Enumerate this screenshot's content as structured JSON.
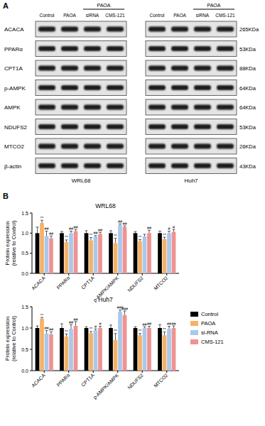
{
  "figure": {
    "panel_a": {
      "label": "A",
      "treatment_label": "PAOA",
      "lanes": [
        "Control",
        "PAOA",
        "siRNA",
        "CMS-121"
      ],
      "proteins": [
        "ACACA",
        "PPARα",
        "CPT1A",
        "p-AMPK",
        "AMPK",
        "NDUFS2",
        "MTCO2",
        "β-actin"
      ],
      "sizes": [
        "265KDa",
        "53KDa",
        "88KDa",
        "64KDa",
        "64KDa",
        "53KDa",
        "26KDa",
        "43KDa"
      ],
      "cell_lines": [
        "WRL68",
        "Huh7"
      ]
    },
    "panel_b_label": "B"
  },
  "chart_data": [
    {
      "type": "bar",
      "title": "WRL68",
      "y_label": [
        "Protein expression",
        "(relative to Control)"
      ],
      "categories": [
        "ACACA",
        "PPARα",
        "CPT1A",
        "p-AMPK/AMPK",
        "NDUFS2",
        "MTCO2"
      ],
      "series": [
        {
          "name": "Control",
          "color": "#000000",
          "values": [
            1.0,
            1.0,
            1.0,
            1.0,
            1.0,
            1.0
          ],
          "errors": [
            0.15,
            0.04,
            0.06,
            0.06,
            0.04,
            0.05
          ],
          "annotations": [
            null,
            null,
            null,
            null,
            null,
            null
          ]
        },
        {
          "name": "PAOA",
          "color": "#f5b266",
          "values": [
            1.25,
            0.78,
            0.82,
            0.75,
            0.8,
            0.85
          ],
          "errors": [
            0.07,
            0.05,
            0.07,
            0.12,
            0.04,
            0.05
          ],
          "annotations": [
            "**",
            "**",
            "**",
            "**",
            "**",
            "**"
          ]
        },
        {
          "name": "si-RNA",
          "color": "#a9c8ec",
          "values": [
            0.93,
            1.0,
            0.92,
            1.2,
            0.92,
            1.0
          ],
          "errors": [
            0.12,
            0.05,
            0.02,
            0.03,
            0.05,
            0.05
          ],
          "annotations": [
            "##",
            "##",
            "##",
            "##",
            null,
            "#"
          ]
        },
        {
          "name": "CMS-121",
          "color": "#f19191",
          "values": [
            0.87,
            1.05,
            0.98,
            1.15,
            1.0,
            1.03
          ],
          "errors": [
            0.06,
            0.04,
            0.04,
            0.03,
            0.07,
            0.06
          ],
          "annotations": [
            "##",
            "##",
            "##",
            "##",
            "##",
            "#"
          ]
        }
      ],
      "ylim": [
        0,
        1.5
      ],
      "yticks": [
        {
          "value": 0,
          "label": "0.0"
        },
        0.5,
        {
          "value": 1,
          "label": "1.0"
        },
        1.5
      ],
      "grid": false,
      "legend": "right"
    },
    {
      "type": "bar",
      "title": "Huh7",
      "y_label": [
        "Protein expression",
        "(relative to Control)"
      ],
      "categories": [
        "ACACA",
        "PPARα",
        "CPT1A",
        "p-AMPK/AMPK",
        "NDUFS2",
        "MTCO2"
      ],
      "series": [
        {
          "name": "Control",
          "color": "#000000",
          "values": [
            1.0,
            1.0,
            1.0,
            1.0,
            1.0,
            1.0
          ],
          "errors": [
            0.05,
            0.1,
            0.03,
            0.07,
            0.03,
            0.08
          ],
          "annotations": [
            null,
            null,
            null,
            null,
            null,
            null
          ]
        },
        {
          "name": "PAOA",
          "color": "#f5b266",
          "values": [
            1.22,
            0.8,
            0.88,
            0.72,
            0.83,
            0.83
          ],
          "errors": [
            0.03,
            0.06,
            0.04,
            0.15,
            0.04,
            0.08
          ],
          "annotations": [
            "**",
            "**",
            "**",
            "**",
            "**",
            "**"
          ]
        },
        {
          "name": "si-RNA",
          "color": "#a9c8ec",
          "values": [
            0.87,
            0.98,
            0.95,
            1.38,
            1.0,
            0.98
          ],
          "errors": [
            0.07,
            0.1,
            0.03,
            0.04,
            0.03,
            0.06
          ],
          "annotations": [
            "##",
            "##",
            "#",
            "###",
            "##",
            "##"
          ]
        },
        {
          "name": "CMS-121",
          "color": "#f19191",
          "values": [
            0.85,
            1.05,
            1.0,
            1.3,
            1.0,
            1.0
          ],
          "errors": [
            0.06,
            0.1,
            0.04,
            0.1,
            0.04,
            0.05
          ],
          "annotations": [
            "##",
            "##",
            "#",
            "###",
            "##",
            "##"
          ]
        }
      ],
      "ylim": [
        0,
        1.5
      ],
      "yticks": [
        {
          "value": 0,
          "label": "0.0"
        },
        0.5,
        {
          "value": 1,
          "label": "1.0"
        },
        1.5
      ],
      "grid": false
    }
  ]
}
